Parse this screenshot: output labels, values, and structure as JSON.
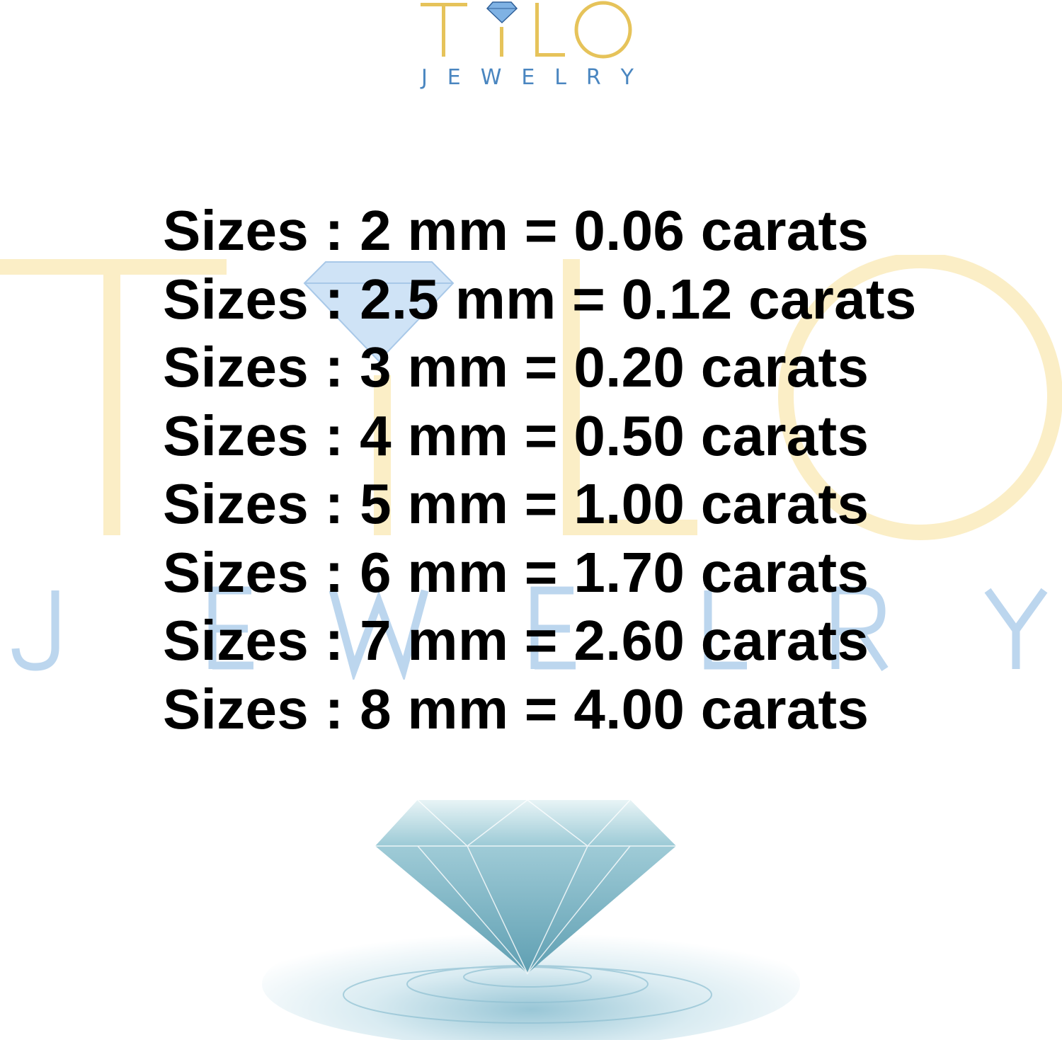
{
  "logo": {
    "wordmark": "TILO",
    "subtitle": "JEWELRY",
    "colors": {
      "gold": "#e6c35a",
      "blue": "#4a86c0"
    }
  },
  "watermark": {
    "wordmark": "TILO",
    "subtitle": "JEWELRY",
    "colors": {
      "gold": "#fbeec6",
      "blue": "#bcd6ee"
    }
  },
  "sizes": [
    "Sizes : 2 mm = 0.06 carats",
    "Sizes : 2.5 mm = 0.12 carats",
    "Sizes : 3 mm = 0.20 carats",
    "Sizes : 4 mm = 0.50 carats",
    "Sizes : 5 mm = 1.00 carats",
    "Sizes : 6 mm = 1.70 carats",
    "Sizes : 7 mm = 2.60 carats",
    "Sizes : 8 mm = 4.00 carats"
  ],
  "image": {
    "icon": "diamond-on-water"
  }
}
